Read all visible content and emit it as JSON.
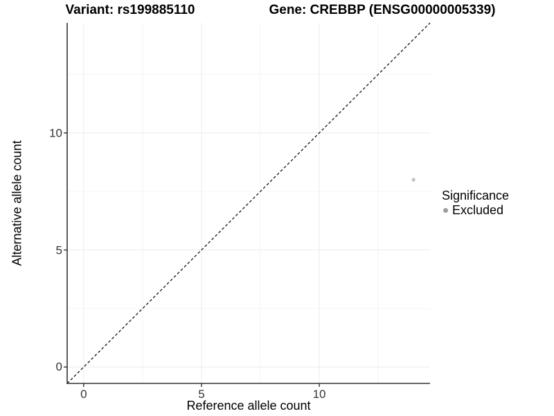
{
  "chart_data": {
    "type": "scatter",
    "title_left": "Variant: rs199885110",
    "title_right": "Gene: CREBBP (ENSG00000005339)",
    "xlabel": "Reference allele count",
    "ylabel": "Alternative allele count",
    "xlim": [
      -0.7,
      14.7
    ],
    "ylim": [
      -0.7,
      14.7
    ],
    "x_ticks": [
      0,
      5,
      10
    ],
    "y_ticks": [
      0,
      5,
      10
    ],
    "x_minor_ticks": [
      2.5,
      7.5,
      12.5
    ],
    "y_minor_ticks": [
      2.5,
      7.5,
      12.5
    ],
    "grid": "on",
    "points": [
      {
        "x": 14,
        "y": 8,
        "series": "Excluded"
      }
    ],
    "reference_line": {
      "slope": 1,
      "intercept": 0,
      "style": "dashed",
      "color": "#000000"
    },
    "legend": {
      "title": "Significance",
      "position": "right",
      "entries": [
        {
          "label": "Excluded",
          "color": "#9e9e9e"
        }
      ]
    },
    "colors": {
      "point": "#c0c0c0",
      "axis": "#333333",
      "tick_label": "#333333",
      "grid_major": "#ebebeb",
      "grid_minor": "#f4f4f4",
      "background": "#ffffff"
    }
  }
}
